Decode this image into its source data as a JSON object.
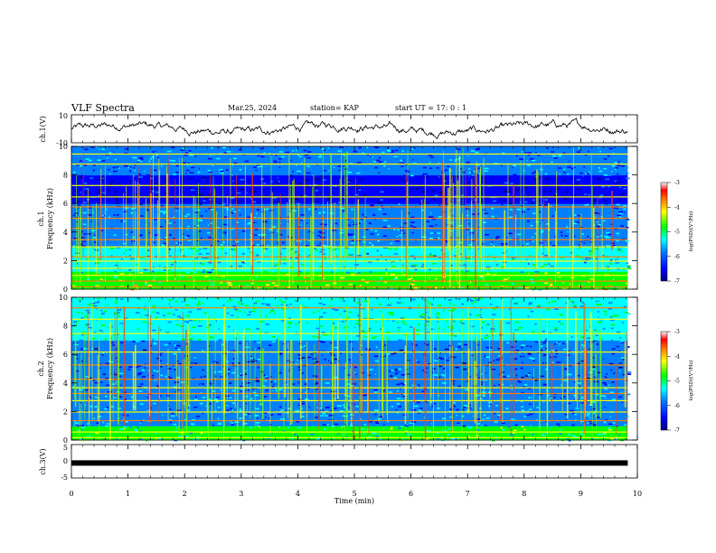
{
  "header": {
    "title": "VLF Spectra",
    "date": "Mar.25, 2024",
    "station": "station= KAP",
    "start_ut": "start  UT =   17: 0  : 1"
  },
  "colorbar": {
    "label": "log(PSD)(V²/Hz)",
    "ticks": [
      "-3",
      "-4",
      "-5",
      "-6",
      "-7"
    ],
    "range": [
      -7,
      -3
    ],
    "colors": [
      "#000080",
      "#0000ff",
      "#0080ff",
      "#00ffff",
      "#00ff00",
      "#ffff00",
      "#ff8000",
      "#ff0000",
      "#ffffff"
    ]
  },
  "chart_data": [
    {
      "type": "line",
      "name": "ch1-waveform",
      "ylabel": "ch.1(V)",
      "ylim": [
        -10,
        10
      ],
      "yticks": [
        "10",
        "-10"
      ],
      "xlim": [
        0,
        9.83
      ],
      "description_values": "noisy waveform oscillating between about -7 V and 8 V",
      "line_color": "#000000"
    },
    {
      "type": "heatmap",
      "name": "ch1-spectrogram",
      "ylabel": "ch.1\nFrequency  (kHz)",
      "ylabel_lines": [
        "ch.1",
        "Frequency  (kHz)"
      ],
      "yticks": [
        "0",
        "2",
        "4",
        "6",
        "8",
        "10"
      ],
      "ylim": [
        0,
        10
      ],
      "xlim": [
        0,
        9.83
      ],
      "zlim": [
        -7,
        -3
      ],
      "bands_khz": [
        0.2,
        0.6,
        1.0,
        1.5,
        2.0,
        2.3,
        3.0,
        3.5,
        4.3,
        5.0,
        5.8,
        6.5,
        7.3,
        8.8,
        9.5
      ],
      "quiet_band_khz": [
        6.0,
        8.0
      ]
    },
    {
      "type": "heatmap",
      "name": "ch2-spectrogram",
      "ylabel_lines": [
        "ch.2",
        "Frequency  (kHz)"
      ],
      "yticks": [
        "0",
        "2",
        "4",
        "6",
        "8",
        "10"
      ],
      "ylim": [
        0,
        10
      ],
      "xlim": [
        0,
        9.83
      ],
      "zlim": [
        -7,
        -3
      ],
      "bands_khz": [
        0.2,
        0.6,
        1.4,
        2.0,
        2.8,
        3.3,
        3.7,
        4.3,
        5.3,
        6.2,
        7.5,
        8.5,
        9.3
      ],
      "quiet_band_khz": [
        4.0,
        6.5
      ]
    },
    {
      "type": "line",
      "name": "ch3-waveform",
      "ylabel": "ch.3(V)",
      "ylim": [
        -5,
        5
      ],
      "yticks": [
        "5",
        "0",
        "-5"
      ],
      "xlim": [
        0,
        9.83
      ],
      "values_note": "flat thick line near -0.5 V",
      "level": -0.5
    }
  ],
  "xaxis": {
    "label": "Time  (min)",
    "ticks": [
      "0",
      "1",
      "2",
      "3",
      "4",
      "5",
      "6",
      "7",
      "8",
      "9",
      "10"
    ],
    "range": [
      0,
      10
    ]
  }
}
